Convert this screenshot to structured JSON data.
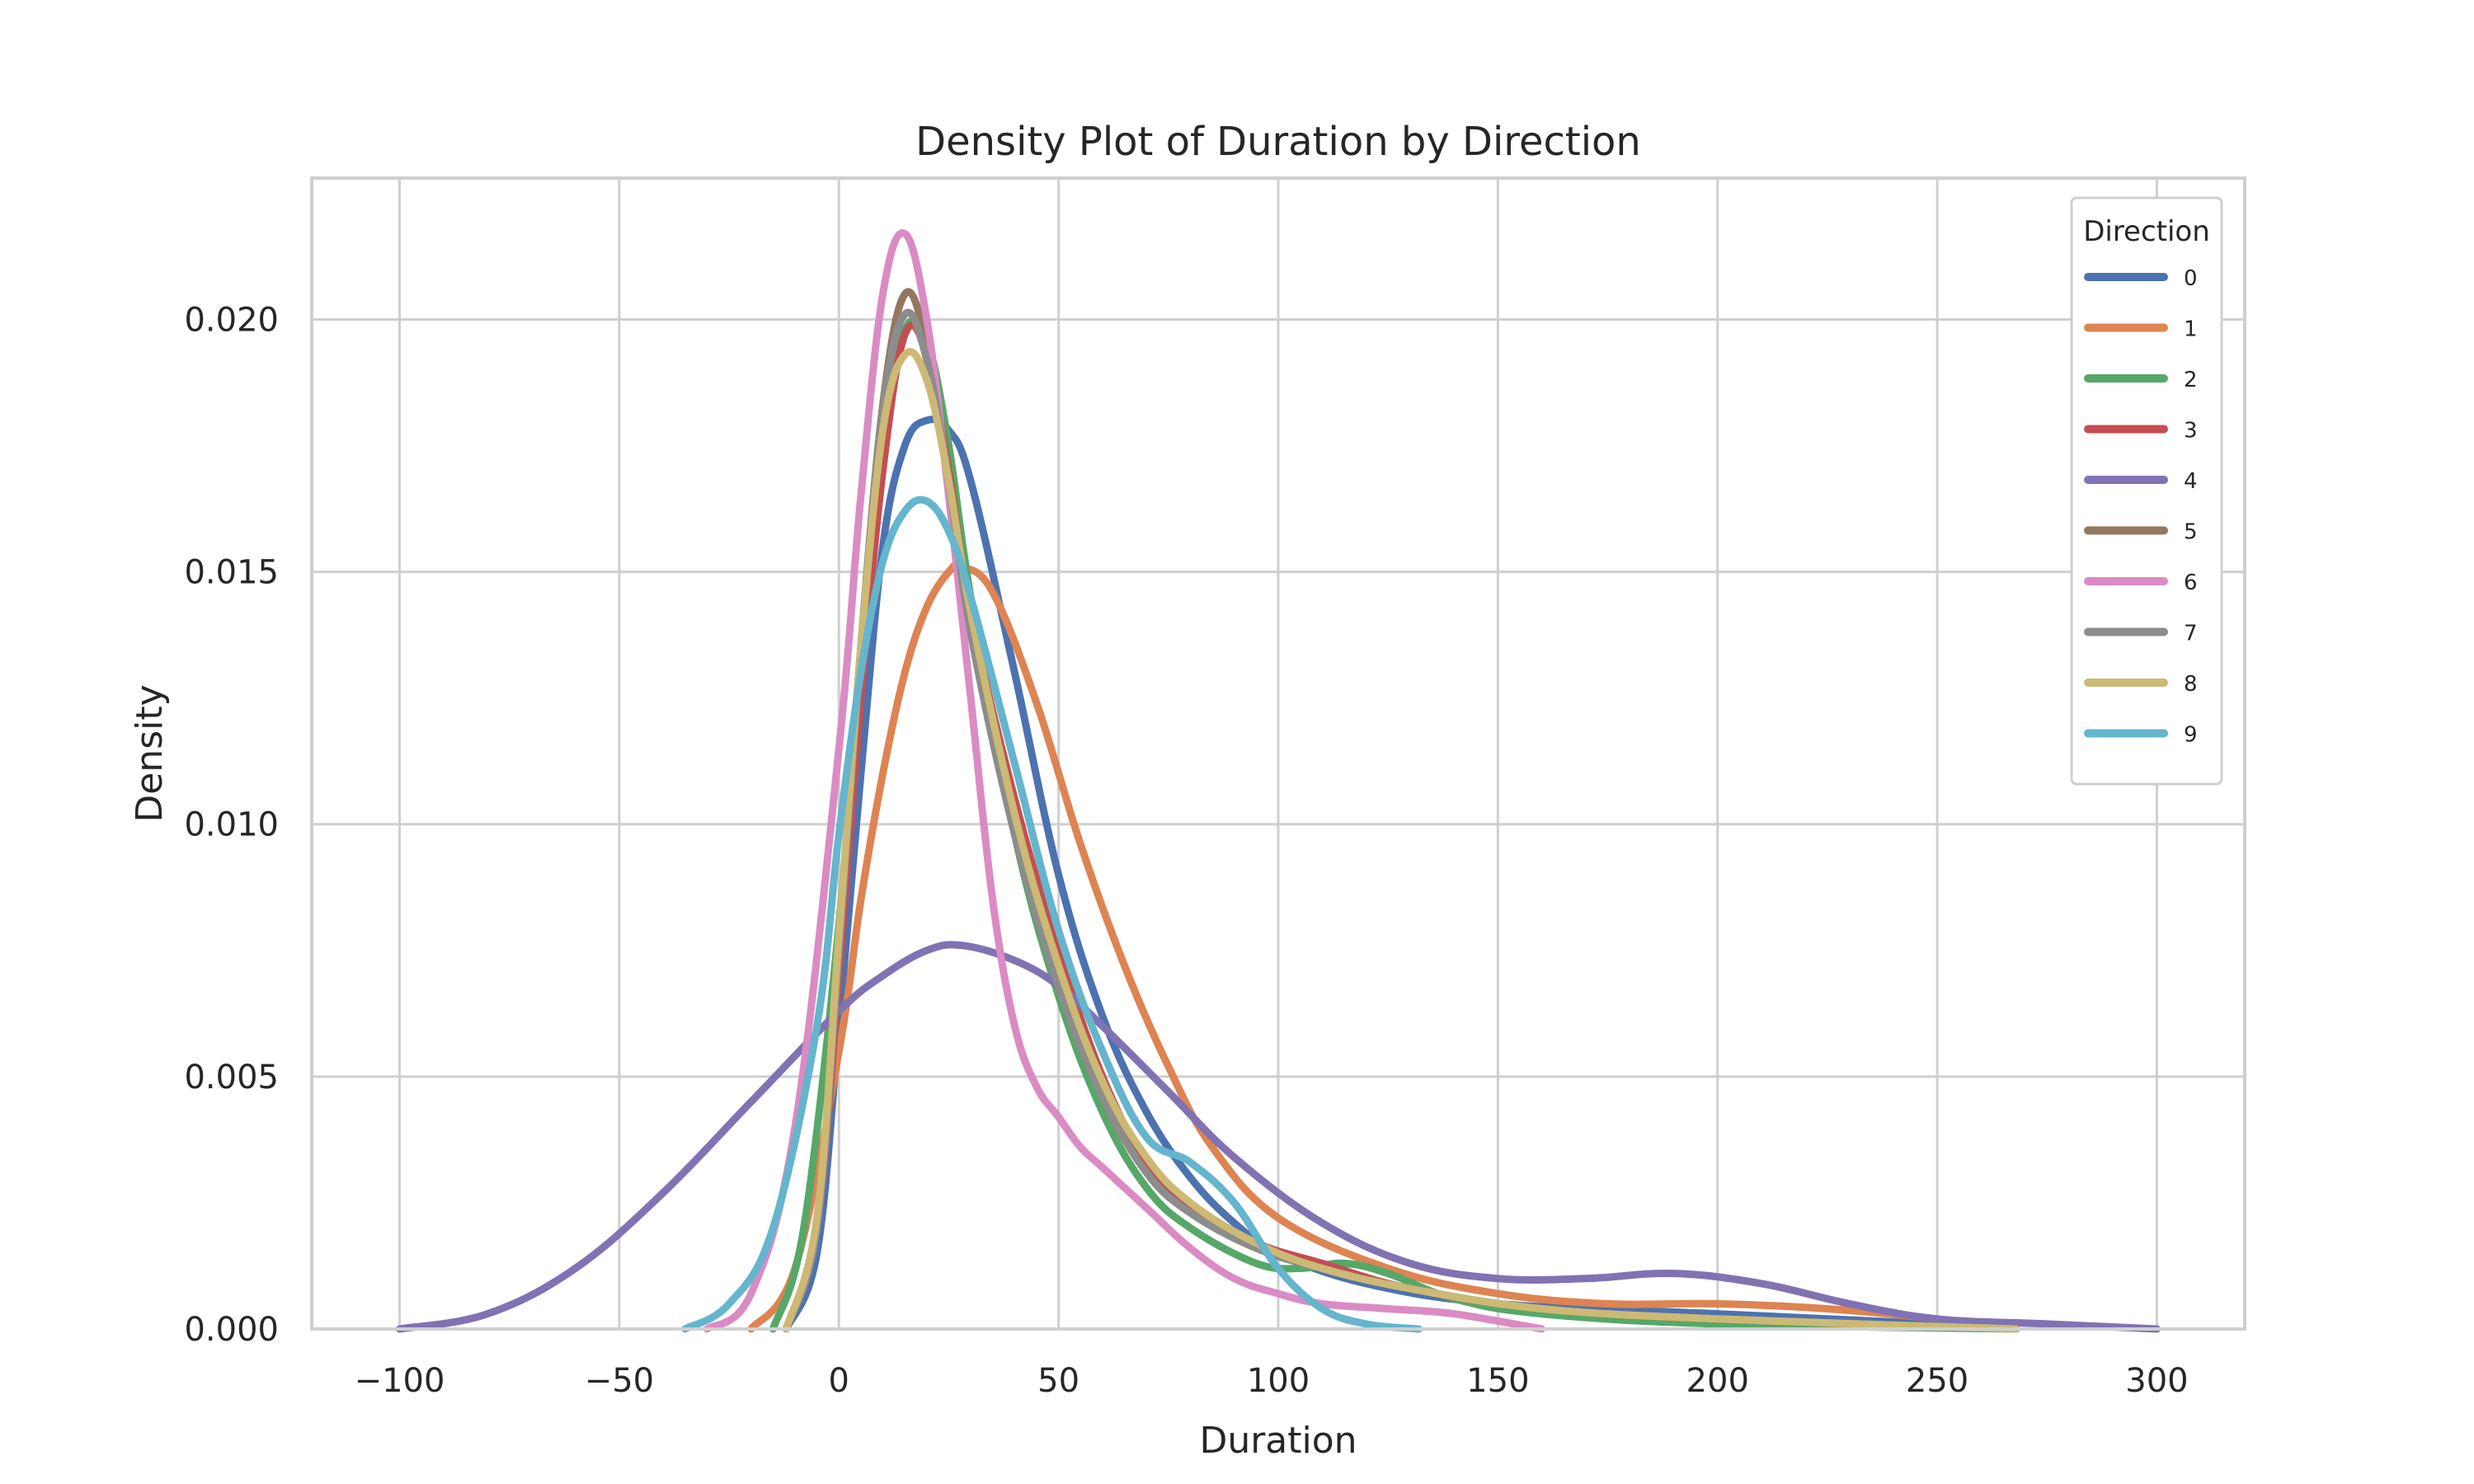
{
  "chart_data": {
    "type": "line",
    "title": "Density Plot of Duration by Direction",
    "xlabel": "Duration",
    "ylabel": "Density",
    "xlim": [
      -120,
      320
    ],
    "ylim": [
      0,
      0.0228
    ],
    "x_ticks": [
      -100,
      -50,
      0,
      50,
      100,
      150,
      200,
      250,
      300
    ],
    "x_tick_labels": [
      "−100",
      "−50",
      "0",
      "50",
      "100",
      "150",
      "200",
      "250",
      "300"
    ],
    "y_ticks": [
      0,
      0.005,
      0.01,
      0.015,
      0.02
    ],
    "y_tick_labels": [
      "0.000",
      "0.005",
      "0.010",
      "0.015",
      "0.020"
    ],
    "grid": true,
    "legend": {
      "title": "Direction",
      "placement": "top-right"
    },
    "series": [
      {
        "name": "0",
        "color": "#4c72b0",
        "x": [
          -12,
          -5,
          0,
          5,
          10,
          15,
          20,
          25,
          30,
          40,
          50,
          60,
          70,
          80,
          90,
          100,
          120,
          150,
          200,
          250,
          268
        ],
        "y": [
          0,
          0.0015,
          0.006,
          0.011,
          0.0155,
          0.0175,
          0.018,
          0.0178,
          0.0168,
          0.013,
          0.009,
          0.0062,
          0.0043,
          0.003,
          0.0021,
          0.0015,
          0.0009,
          0.0005,
          0.0003,
          0.0001,
          0
        ]
      },
      {
        "name": "1",
        "color": "#dd8452",
        "x": [
          -20,
          -10,
          0,
          5,
          10,
          15,
          20,
          25,
          28,
          35,
          45,
          55,
          65,
          75,
          85,
          100,
          125,
          150,
          175,
          200,
          225,
          250,
          268
        ],
        "y": [
          0,
          0.0012,
          0.0055,
          0.0085,
          0.011,
          0.013,
          0.0143,
          0.015,
          0.0151,
          0.0146,
          0.0124,
          0.0096,
          0.0072,
          0.0052,
          0.0036,
          0.0022,
          0.0012,
          0.0007,
          0.0005,
          0.0005,
          0.0004,
          0.0002,
          0
        ]
      },
      {
        "name": "2",
        "color": "#55a868",
        "x": [
          -15,
          -8,
          0,
          5,
          10,
          15,
          20,
          25,
          30,
          40,
          50,
          60,
          70,
          80,
          95,
          105,
          115,
          125,
          140,
          160,
          200,
          268
        ],
        "y": [
          0,
          0.002,
          0.008,
          0.0135,
          0.0178,
          0.0198,
          0.0196,
          0.0175,
          0.0145,
          0.0098,
          0.0066,
          0.0043,
          0.0028,
          0.002,
          0.0013,
          0.0012,
          0.0013,
          0.0011,
          0.0006,
          0.0003,
          0.0001,
          0
        ]
      },
      {
        "name": "3",
        "color": "#c44e52",
        "x": [
          -12,
          -5,
          0,
          5,
          10,
          15,
          20,
          25,
          30,
          40,
          50,
          60,
          70,
          80,
          95,
          110,
          130,
          160,
          200,
          268
        ],
        "y": [
          0,
          0.002,
          0.007,
          0.0125,
          0.017,
          0.0197,
          0.0193,
          0.017,
          0.0142,
          0.0105,
          0.0075,
          0.005,
          0.0033,
          0.0024,
          0.0017,
          0.0013,
          0.0008,
          0.0004,
          0.0002,
          0
        ]
      },
      {
        "name": "4",
        "color": "#8172b3",
        "x": [
          -100,
          -80,
          -60,
          -40,
          -20,
          0,
          10,
          20,
          28,
          40,
          50,
          60,
          75,
          90,
          110,
          130,
          150,
          170,
          190,
          210,
          230,
          250,
          275,
          300
        ],
        "y": [
          0,
          0.0003,
          0.0012,
          0.0027,
          0.0045,
          0.0063,
          0.007,
          0.0075,
          0.0076,
          0.0073,
          0.0068,
          0.006,
          0.0047,
          0.0034,
          0.0021,
          0.0013,
          0.001,
          0.001,
          0.0011,
          0.0009,
          0.0005,
          0.0002,
          0.0001,
          0
        ]
      },
      {
        "name": "5",
        "color": "#937860",
        "x": [
          -12,
          -5,
          0,
          5,
          10,
          15,
          20,
          25,
          30,
          40,
          50,
          60,
          70,
          80,
          95,
          110,
          130,
          160,
          200,
          268
        ],
        "y": [
          0,
          0.002,
          0.0075,
          0.0135,
          0.0183,
          0.0205,
          0.0195,
          0.0168,
          0.0138,
          0.0098,
          0.0068,
          0.0046,
          0.0031,
          0.0023,
          0.0016,
          0.0012,
          0.0008,
          0.0004,
          0.0002,
          0
        ]
      },
      {
        "name": "6",
        "color": "#da8bc3",
        "x": [
          -30,
          -20,
          -10,
          0,
          5,
          10,
          15,
          20,
          25,
          30,
          35,
          40,
          45,
          50,
          55,
          60,
          70,
          80,
          90,
          100,
          110,
          125,
          140,
          160
        ],
        "y": [
          0,
          0.0007,
          0.004,
          0.0115,
          0.0165,
          0.0205,
          0.0217,
          0.02,
          0.0165,
          0.0125,
          0.0085,
          0.006,
          0.0048,
          0.0042,
          0.0036,
          0.0032,
          0.0024,
          0.0016,
          0.001,
          0.0007,
          0.0005,
          0.0004,
          0.0003,
          0
        ]
      },
      {
        "name": "7",
        "color": "#8c8c8c",
        "x": [
          -12,
          -5,
          0,
          5,
          10,
          15,
          20,
          25,
          30,
          40,
          50,
          60,
          70,
          80,
          95,
          110,
          130,
          160,
          200,
          268
        ],
        "y": [
          0,
          0.002,
          0.0075,
          0.0135,
          0.0182,
          0.0201,
          0.0192,
          0.0168,
          0.0138,
          0.0098,
          0.0068,
          0.0046,
          0.0031,
          0.0023,
          0.0016,
          0.0012,
          0.0008,
          0.0004,
          0.0002,
          0
        ]
      },
      {
        "name": "8",
        "color": "#ccb974",
        "x": [
          -12,
          -5,
          0,
          5,
          10,
          15,
          20,
          25,
          30,
          40,
          50,
          60,
          70,
          80,
          95,
          110,
          130,
          160,
          200,
          268
        ],
        "y": [
          0,
          0.0022,
          0.0078,
          0.0135,
          0.0178,
          0.0193,
          0.0188,
          0.0168,
          0.0142,
          0.0102,
          0.0072,
          0.0049,
          0.0034,
          0.0025,
          0.0017,
          0.0012,
          0.0008,
          0.0004,
          0.0002,
          0
        ]
      },
      {
        "name": "9",
        "color": "#64b5cd",
        "x": [
          -35,
          -25,
          -15,
          -5,
          0,
          5,
          10,
          15,
          20,
          25,
          30,
          40,
          50,
          60,
          70,
          80,
          90,
          100,
          110,
          120,
          132
        ],
        "y": [
          0,
          0.0005,
          0.002,
          0.006,
          0.0098,
          0.013,
          0.0152,
          0.0162,
          0.0164,
          0.0158,
          0.0145,
          0.0112,
          0.0079,
          0.0055,
          0.0038,
          0.0033,
          0.0025,
          0.0012,
          0.0004,
          0.0001,
          0
        ]
      }
    ]
  }
}
